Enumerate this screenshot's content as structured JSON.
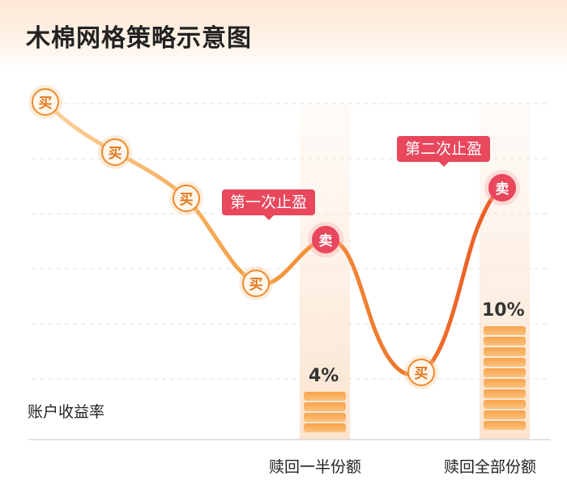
{
  "title": "木棉网格策略示意图",
  "y_axis_label": "账户收益率",
  "buy_label": "买",
  "sell_label": "卖",
  "stages": [
    {
      "badge": "第一次止盈",
      "percent": "4%",
      "percent_value": 4,
      "action": "赎回一半份额"
    },
    {
      "badge": "第二次止盈",
      "percent": "10%",
      "percent_value": 10,
      "action": "赎回全部份额"
    }
  ],
  "colors": {
    "buy_orange": "#ee8a2e",
    "sell_red": "#e8475c",
    "curve_start": "#fbc98a",
    "curve_end": "#ea5a24",
    "highlight_band": "#fdeadb"
  }
}
